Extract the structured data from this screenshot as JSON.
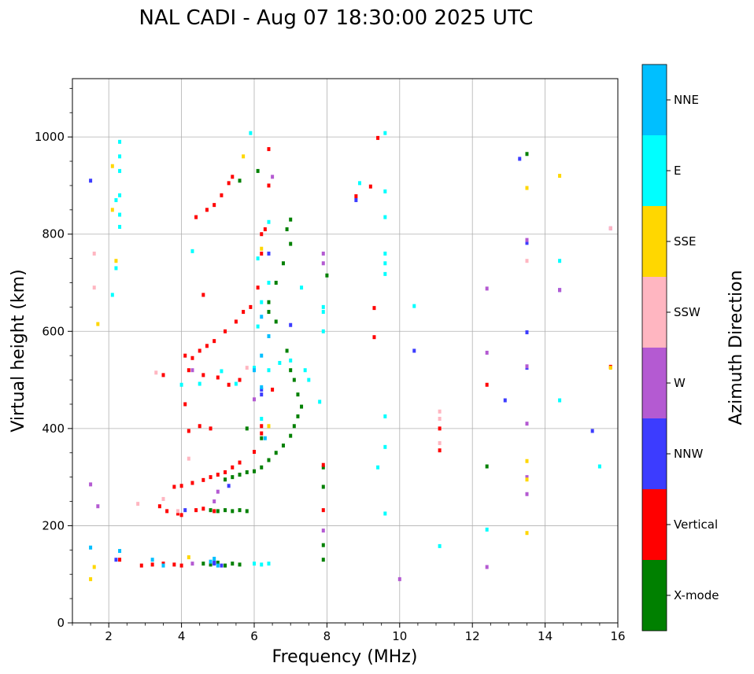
{
  "chart_data": {
    "type": "scatter",
    "title": "NAL CADI - Aug 07 18:30:00 2025 UTC",
    "xlabel": "Frequency (MHz)",
    "ylabel": "Virtual height (km)",
    "xlim": [
      1,
      16
    ],
    "ylim": [
      0,
      1120
    ],
    "xticks": [
      2,
      4,
      6,
      8,
      10,
      12,
      14,
      16
    ],
    "yticks": [
      0,
      200,
      400,
      600,
      800,
      1000
    ],
    "grid": true,
    "colorbar": {
      "label": "Azimuth Direction",
      "categories": [
        {
          "name": "X-mode",
          "color": "#008000"
        },
        {
          "name": "Vertical",
          "color": "#ff0000"
        },
        {
          "name": "NNW",
          "color": "#3c3cff"
        },
        {
          "name": "W",
          "color": "#b45ad2"
        },
        {
          "name": "SSW",
          "color": "#ffb6c1"
        },
        {
          "name": "SSE",
          "color": "#ffd700"
        },
        {
          "name": "E",
          "color": "#00ffff"
        },
        {
          "name": "NNE",
          "color": "#00bfff"
        }
      ]
    },
    "series": [
      {
        "name": "X-mode",
        "points": [
          [
            4.6,
            122
          ],
          [
            4.8,
            120
          ],
          [
            5.0,
            124
          ],
          [
            5.2,
            118
          ],
          [
            5.4,
            122
          ],
          [
            5.6,
            120
          ],
          [
            4.8,
            232
          ],
          [
            5.0,
            230
          ],
          [
            5.2,
            232
          ],
          [
            5.4,
            230
          ],
          [
            5.6,
            232
          ],
          [
            5.8,
            230
          ],
          [
            5.2,
            295
          ],
          [
            5.4,
            300
          ],
          [
            5.6,
            305
          ],
          [
            5.8,
            310
          ],
          [
            6.0,
            312
          ],
          [
            6.2,
            320
          ],
          [
            6.4,
            335
          ],
          [
            6.6,
            350
          ],
          [
            6.8,
            365
          ],
          [
            7.0,
            385
          ],
          [
            7.1,
            405
          ],
          [
            7.2,
            425
          ],
          [
            7.3,
            445
          ],
          [
            7.2,
            470
          ],
          [
            7.1,
            500
          ],
          [
            7.0,
            520
          ],
          [
            6.9,
            560
          ],
          [
            6.6,
            620
          ],
          [
            6.4,
            640
          ],
          [
            6.4,
            660
          ],
          [
            6.6,
            700
          ],
          [
            6.8,
            740
          ],
          [
            7.0,
            780
          ],
          [
            6.9,
            810
          ],
          [
            7.0,
            830
          ],
          [
            5.6,
            910
          ],
          [
            6.1,
            930
          ],
          [
            5.8,
            400
          ],
          [
            6.2,
            380
          ],
          [
            7.9,
            320
          ],
          [
            7.9,
            280
          ],
          [
            7.9,
            160
          ],
          [
            7.9,
            130
          ],
          [
            12.4,
            322
          ],
          [
            13.5,
            965
          ],
          [
            8.0,
            715
          ]
        ]
      },
      {
        "name": "Vertical",
        "points": [
          [
            2.9,
            118
          ],
          [
            3.2,
            120
          ],
          [
            3.5,
            122
          ],
          [
            3.8,
            120
          ],
          [
            4.0,
            118
          ],
          [
            2.3,
            130
          ],
          [
            3.4,
            240
          ],
          [
            3.6,
            230
          ],
          [
            3.9,
            225
          ],
          [
            4.0,
            222
          ],
          [
            4.4,
            232
          ],
          [
            4.6,
            235
          ],
          [
            4.9,
            230
          ],
          [
            3.8,
            280
          ],
          [
            4.0,
            282
          ],
          [
            4.3,
            288
          ],
          [
            4.6,
            294
          ],
          [
            4.8,
            300
          ],
          [
            5.0,
            305
          ],
          [
            5.2,
            310
          ],
          [
            5.4,
            320
          ],
          [
            5.6,
            330
          ],
          [
            6.0,
            352
          ],
          [
            6.2,
            390
          ],
          [
            6.2,
            405
          ],
          [
            4.2,
            395
          ],
          [
            4.5,
            405
          ],
          [
            4.8,
            400
          ],
          [
            3.5,
            510
          ],
          [
            4.2,
            520
          ],
          [
            4.6,
            510
          ],
          [
            5.0,
            505
          ],
          [
            5.3,
            490
          ],
          [
            5.6,
            500
          ],
          [
            6.5,
            480
          ],
          [
            4.3,
            545
          ],
          [
            4.5,
            560
          ],
          [
            4.7,
            570
          ],
          [
            4.9,
            580
          ],
          [
            5.2,
            600
          ],
          [
            5.5,
            620
          ],
          [
            5.7,
            640
          ],
          [
            5.9,
            650
          ],
          [
            6.1,
            690
          ],
          [
            6.2,
            760
          ],
          [
            6.2,
            800
          ],
          [
            6.3,
            810
          ],
          [
            6.4,
            975
          ],
          [
            6.4,
            900
          ],
          [
            5.4,
            918
          ],
          [
            5.3,
            905
          ],
          [
            5.1,
            880
          ],
          [
            4.9,
            860
          ],
          [
            4.7,
            850
          ],
          [
            4.4,
            835
          ],
          [
            4.1,
            450
          ],
          [
            4.1,
            550
          ],
          [
            4.6,
            675
          ],
          [
            8.8,
            878
          ],
          [
            9.2,
            898
          ],
          [
            9.4,
            998
          ],
          [
            9.3,
            648
          ],
          [
            9.3,
            588
          ],
          [
            7.9,
            325
          ],
          [
            7.9,
            232
          ],
          [
            11.1,
            355
          ],
          [
            11.1,
            400
          ],
          [
            12.4,
            490
          ],
          [
            15.8,
            527
          ]
        ]
      },
      {
        "name": "NNW",
        "points": [
          [
            4.9,
            124
          ],
          [
            5.1,
            118
          ],
          [
            2.2,
            130
          ],
          [
            4.9,
            122
          ],
          [
            6.2,
            470
          ],
          [
            6.2,
            480
          ],
          [
            5.3,
            282
          ],
          [
            4.1,
            232
          ],
          [
            1.5,
            910
          ],
          [
            8.8,
            870
          ],
          [
            10.4,
            560
          ],
          [
            12.9,
            458
          ],
          [
            13.3,
            955
          ],
          [
            13.5,
            598
          ],
          [
            13.5,
            525
          ],
          [
            15.3,
            395
          ],
          [
            13.5,
            782
          ],
          [
            14.4,
            685
          ],
          [
            6.4,
            760
          ],
          [
            7.0,
            613
          ]
        ]
      },
      {
        "name": "W",
        "points": [
          [
            4.3,
            122
          ],
          [
            4.9,
            250
          ],
          [
            6.0,
            460
          ],
          [
            1.5,
            285
          ],
          [
            1.7,
            240
          ],
          [
            6.5,
            918
          ],
          [
            7.9,
            760
          ],
          [
            7.9,
            740
          ],
          [
            7.9,
            190
          ],
          [
            10.0,
            90
          ],
          [
            12.4,
            688
          ],
          [
            12.4,
            556
          ],
          [
            12.4,
            115
          ],
          [
            13.5,
            788
          ],
          [
            13.5,
            528
          ],
          [
            13.5,
            410
          ],
          [
            13.5,
            300
          ],
          [
            13.5,
            265
          ],
          [
            14.4,
            685
          ],
          [
            15.8,
            812
          ],
          [
            5.0,
            270
          ],
          [
            4.3,
            520
          ]
        ]
      },
      {
        "name": "SSW",
        "points": [
          [
            2.8,
            245
          ],
          [
            3.5,
            255
          ],
          [
            3.9,
            230
          ],
          [
            3.3,
            515
          ],
          [
            4.2,
            338
          ],
          [
            11.1,
            435
          ],
          [
            11.1,
            420
          ],
          [
            11.1,
            370
          ],
          [
            13.5,
            745
          ],
          [
            15.8,
            812
          ],
          [
            1.6,
            760
          ],
          [
            1.6,
            690
          ],
          [
            5.8,
            525
          ]
        ]
      },
      {
        "name": "SSE",
        "points": [
          [
            1.5,
            90
          ],
          [
            1.6,
            115
          ],
          [
            2.1,
            940
          ],
          [
            2.2,
            745
          ],
          [
            1.7,
            615
          ],
          [
            2.1,
            850
          ],
          [
            4.2,
            135
          ],
          [
            6.4,
            405
          ],
          [
            6.2,
            770
          ],
          [
            5.7,
            960
          ],
          [
            13.5,
            895
          ],
          [
            13.5,
            333
          ],
          [
            13.5,
            295
          ],
          [
            13.5,
            185
          ],
          [
            14.4,
            920
          ],
          [
            15.8,
            525
          ]
        ]
      },
      {
        "name": "E",
        "points": [
          [
            2.3,
            990
          ],
          [
            2.3,
            960
          ],
          [
            2.3,
            930
          ],
          [
            2.3,
            880
          ],
          [
            2.3,
            840
          ],
          [
            2.3,
            815
          ],
          [
            2.2,
            870
          ],
          [
            2.1,
            675
          ],
          [
            2.2,
            730
          ],
          [
            4.0,
            490
          ],
          [
            4.5,
            492
          ],
          [
            5.1,
            518
          ],
          [
            5.5,
            492
          ],
          [
            6.0,
            525
          ],
          [
            6.2,
            420
          ],
          [
            6.4,
            520
          ],
          [
            6.7,
            535
          ],
          [
            7.0,
            540
          ],
          [
            7.4,
            520
          ],
          [
            6.1,
            610
          ],
          [
            6.2,
            660
          ],
          [
            6.4,
            700
          ],
          [
            7.3,
            690
          ],
          [
            7.5,
            500
          ],
          [
            7.8,
            455
          ],
          [
            6.1,
            750
          ],
          [
            6.4,
            825
          ],
          [
            6.0,
            122
          ],
          [
            6.2,
            120
          ],
          [
            6.4,
            122
          ],
          [
            5.9,
            1008
          ],
          [
            4.3,
            765
          ],
          [
            9.6,
            1008
          ],
          [
            9.6,
            888
          ],
          [
            9.6,
            835
          ],
          [
            9.6,
            760
          ],
          [
            9.6,
            740
          ],
          [
            9.6,
            718
          ],
          [
            9.6,
            425
          ],
          [
            9.6,
            362
          ],
          [
            9.4,
            320
          ],
          [
            9.6,
            225
          ],
          [
            8.9,
            905
          ],
          [
            10.4,
            652
          ],
          [
            11.1,
            158
          ],
          [
            12.4,
            192
          ],
          [
            14.4,
            745
          ],
          [
            14.4,
            458
          ],
          [
            15.5,
            322
          ],
          [
            7.9,
            650
          ],
          [
            7.9,
            640
          ],
          [
            7.9,
            600
          ]
        ]
      },
      {
        "name": "NNE",
        "points": [
          [
            1.5,
            155
          ],
          [
            2.3,
            148
          ],
          [
            3.2,
            130
          ],
          [
            3.5,
            118
          ],
          [
            4.8,
            126
          ],
          [
            4.9,
            132
          ],
          [
            5.0,
            118
          ],
          [
            6.2,
            485
          ],
          [
            6.0,
            520
          ],
          [
            6.3,
            380
          ],
          [
            6.2,
            550
          ],
          [
            6.2,
            630
          ],
          [
            6.4,
            590
          ]
        ]
      }
    ]
  }
}
